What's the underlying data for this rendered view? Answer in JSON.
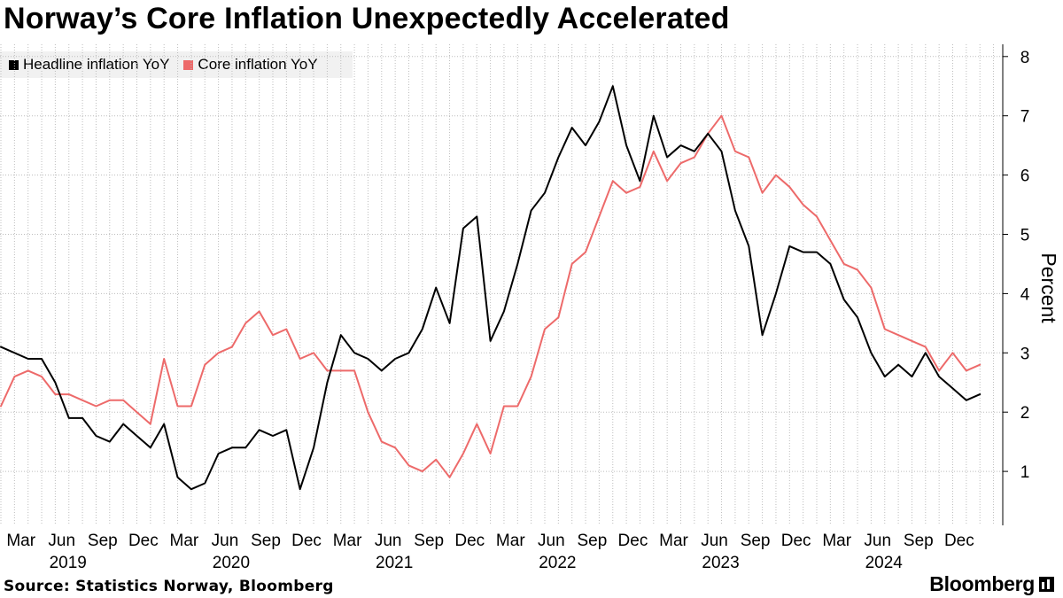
{
  "chart_data": {
    "type": "line",
    "title": "Norway’s Core Inflation Unexpectedly Accelerated",
    "ylabel": "Percent",
    "xlabel": "",
    "ylim": [
      0,
      8
    ],
    "yticks": [
      "1",
      "2",
      "3",
      "4",
      "5",
      "6",
      "7",
      "8"
    ],
    "grid": true,
    "legend_position": "top-left",
    "x_start": "2019-01",
    "month_tick_labels": [
      "Mar",
      "Jun",
      "Sep",
      "Dec",
      "Mar",
      "Jun",
      "Sep",
      "Dec",
      "Mar",
      "Jun",
      "Sep",
      "Dec",
      "Mar",
      "Jun",
      "Sep",
      "Dec",
      "Mar",
      "Jun",
      "Sep",
      "Dec",
      "Mar",
      "Jun",
      "Sep",
      "Dec"
    ],
    "year_labels": [
      "2019",
      "2020",
      "2021",
      "2022",
      "2023",
      "2024"
    ],
    "series": [
      {
        "name": "Headline inflation YoY",
        "color": "#000000",
        "values": [
          3.1,
          3.0,
          2.9,
          2.9,
          2.5,
          1.9,
          1.9,
          1.6,
          1.5,
          1.8,
          1.6,
          1.4,
          1.8,
          0.9,
          0.7,
          0.8,
          1.3,
          1.4,
          1.4,
          1.7,
          1.6,
          1.7,
          0.7,
          1.4,
          2.5,
          3.3,
          3.0,
          2.9,
          2.7,
          2.9,
          3.0,
          3.4,
          4.1,
          3.5,
          5.1,
          5.3,
          3.2,
          3.7,
          4.5,
          5.4,
          5.7,
          6.3,
          6.8,
          6.5,
          6.9,
          7.5,
          6.5,
          5.9,
          7.0,
          6.3,
          6.5,
          6.4,
          6.7,
          6.4,
          5.4,
          4.8,
          3.3,
          4.0,
          4.8,
          4.7,
          4.7,
          4.5,
          3.9,
          3.6,
          3.0,
          2.6,
          2.8,
          2.6,
          3.0,
          2.6,
          2.4,
          2.2,
          2.3
        ]
      },
      {
        "name": "Core inflation YoY",
        "color": "#ed6a6a",
        "values": [
          2.1,
          2.6,
          2.7,
          2.6,
          2.3,
          2.3,
          2.2,
          2.1,
          2.2,
          2.2,
          2.0,
          1.8,
          2.9,
          2.1,
          2.1,
          2.8,
          3.0,
          3.1,
          3.5,
          3.7,
          3.3,
          3.4,
          2.9,
          3.0,
          2.7,
          2.7,
          2.7,
          2.0,
          1.5,
          1.4,
          1.1,
          1.0,
          1.2,
          0.9,
          1.3,
          1.8,
          1.3,
          2.1,
          2.1,
          2.6,
          3.4,
          3.6,
          4.5,
          4.7,
          5.3,
          5.9,
          5.7,
          5.8,
          6.4,
          5.9,
          6.2,
          6.3,
          6.7,
          7.0,
          6.4,
          6.3,
          5.7,
          6.0,
          5.8,
          5.5,
          5.3,
          4.9,
          4.5,
          4.4,
          4.1,
          3.4,
          3.3,
          3.2,
          3.1,
          2.7,
          3.0,
          2.7,
          2.8
        ]
      }
    ]
  },
  "footer": {
    "source": "Source: Statistics Norway, Bloomberg",
    "brand": "Bloomberg"
  },
  "colors": {
    "grid": "#bdbdbd",
    "legend_bg": "#f1f1f1"
  }
}
